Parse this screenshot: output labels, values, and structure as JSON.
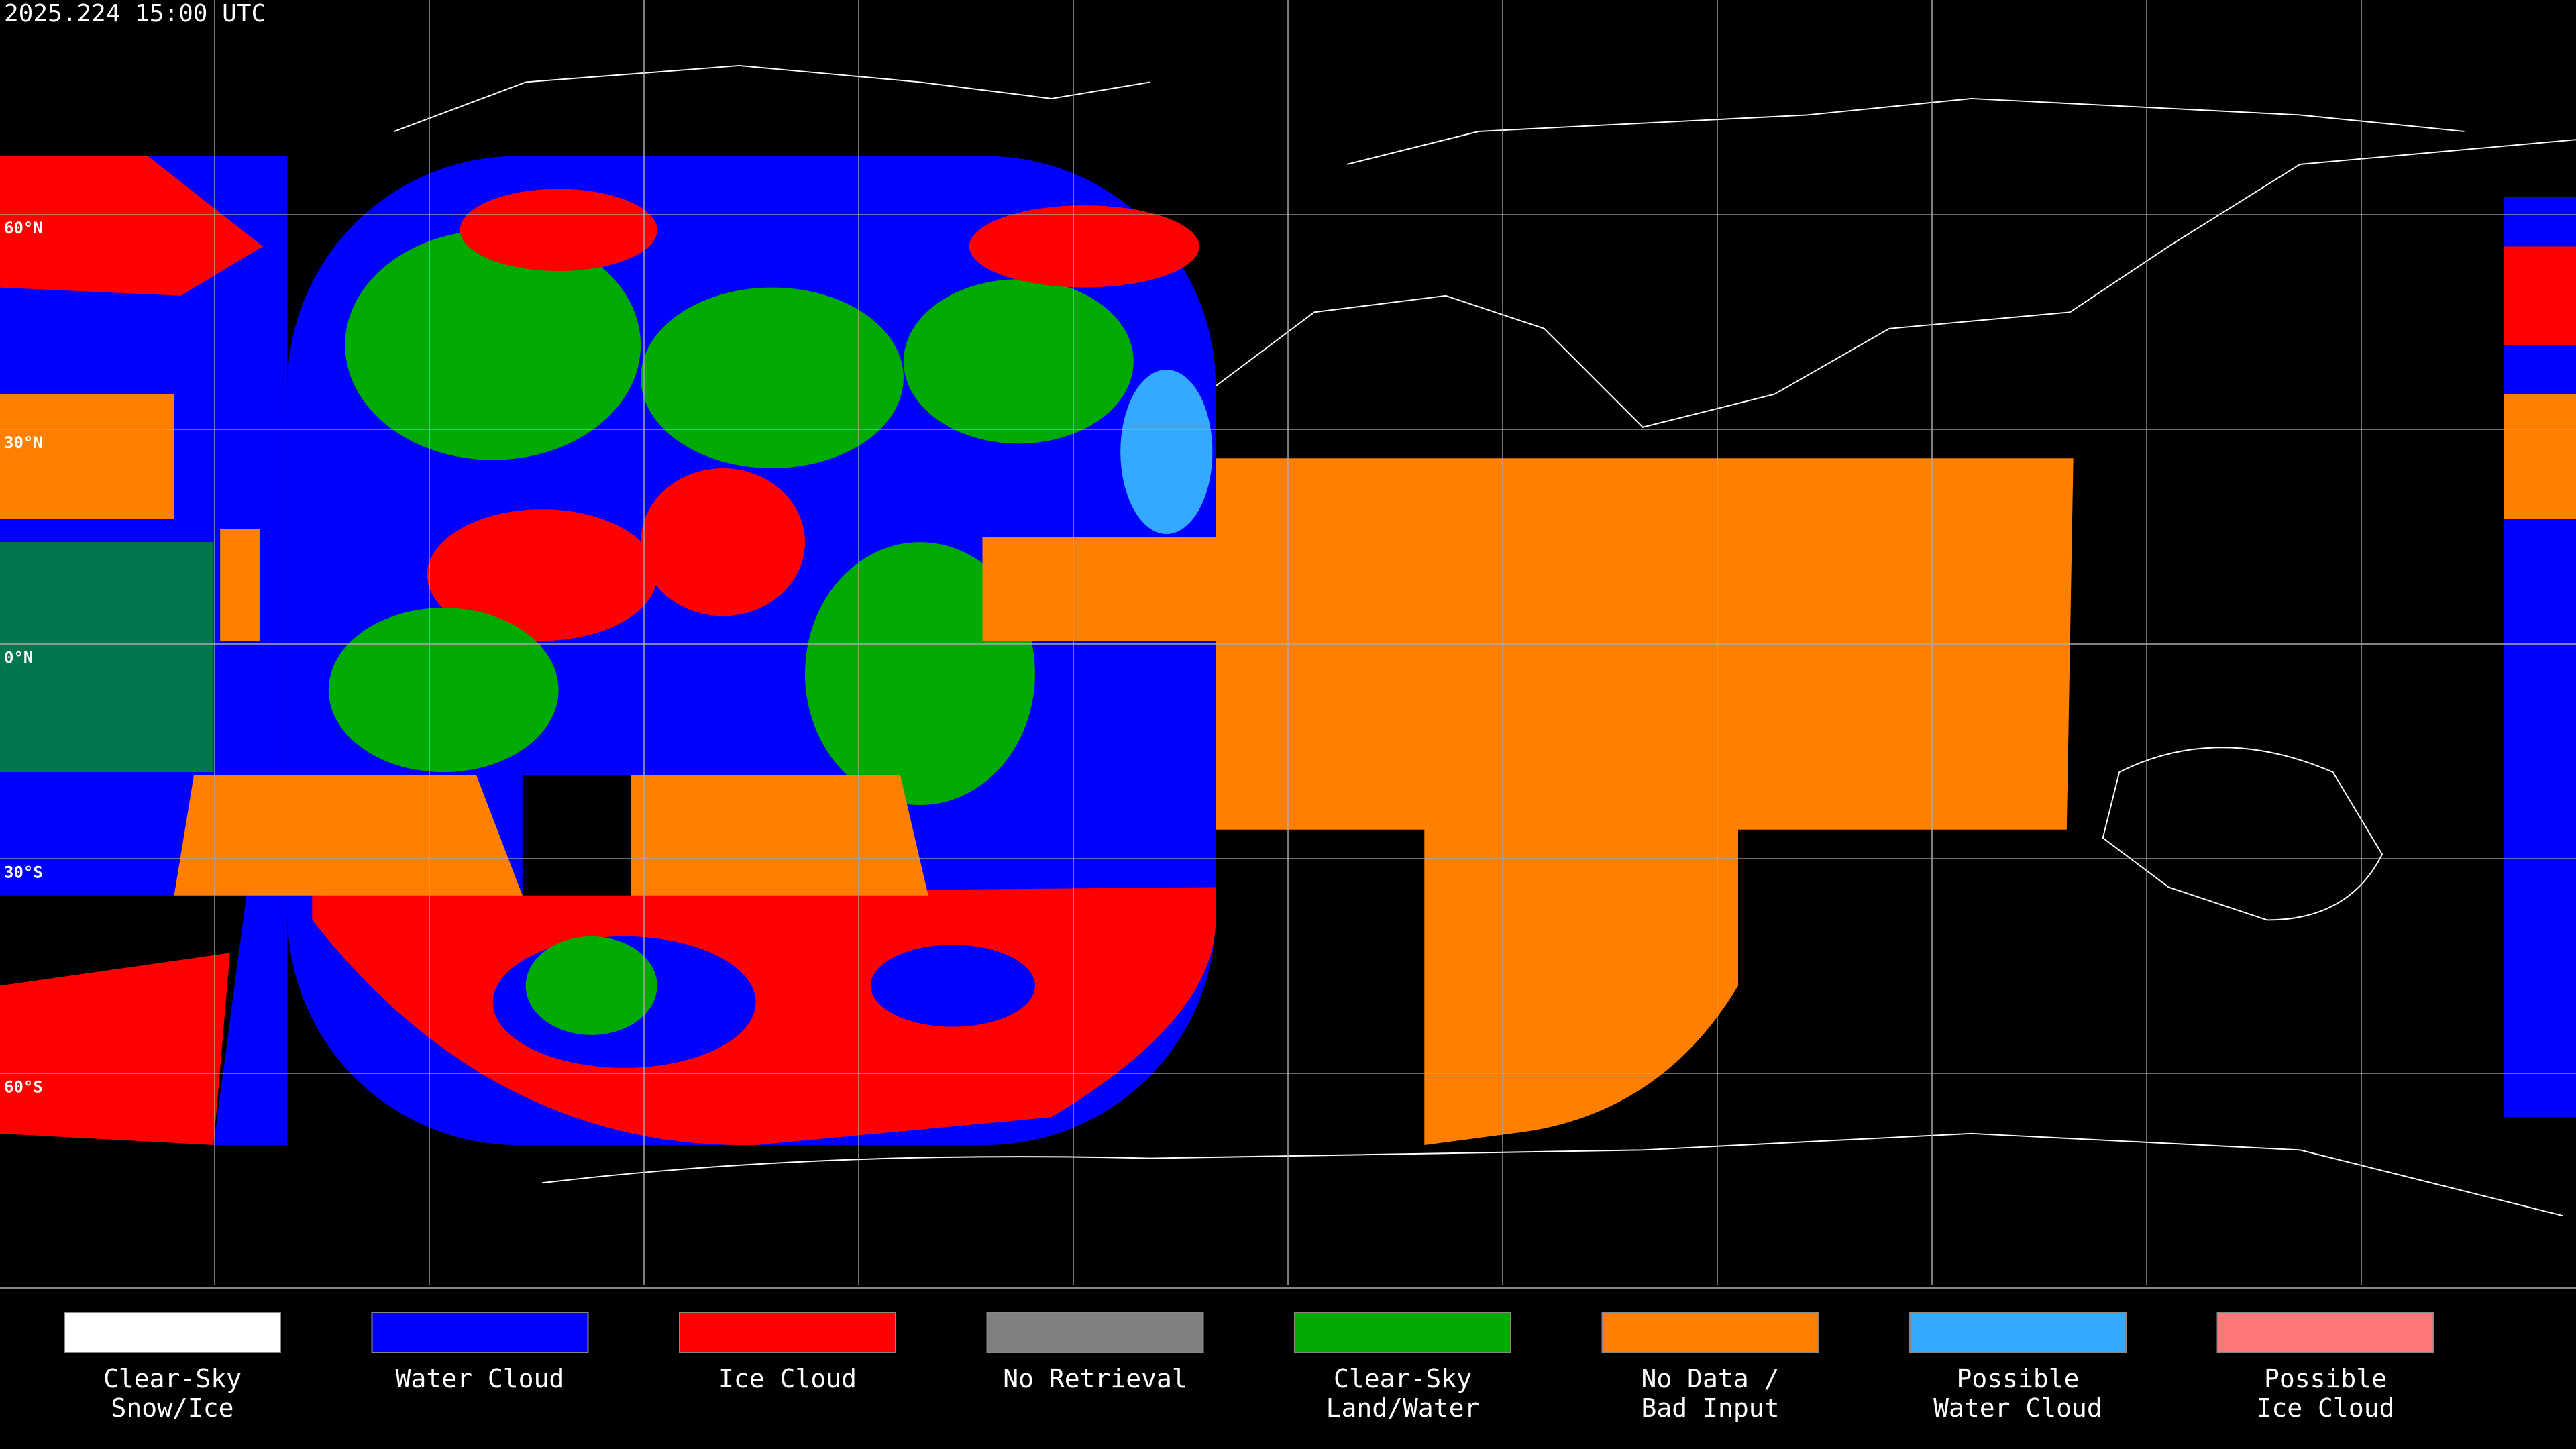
{
  "header": {
    "timestamp": "2025.224 15:00 UTC"
  },
  "map": {
    "lat_labels": [
      "60°N",
      "30°N",
      "0°N",
      "30°S",
      "60°S"
    ]
  },
  "legend": {
    "items": [
      {
        "lines": [
          "Clear-Sky",
          "Snow/Ice"
        ],
        "color": "#ffffff"
      },
      {
        "lines": [
          "Water Cloud"
        ],
        "color": "#0000ff"
      },
      {
        "lines": [
          "Ice Cloud"
        ],
        "color": "#ff0000"
      },
      {
        "lines": [
          "No Retrieval"
        ],
        "color": "#808080"
      },
      {
        "lines": [
          "Clear-Sky",
          "Land/Water"
        ],
        "color": "#00aa00"
      },
      {
        "lines": [
          "No Data /",
          "Bad Input"
        ],
        "color": "#ff8000"
      },
      {
        "lines": [
          "Possible",
          "Water Cloud"
        ],
        "color": "#33aaff"
      },
      {
        "lines": [
          "Possible",
          "Ice Cloud"
        ],
        "color": "#ff7777"
      }
    ]
  }
}
